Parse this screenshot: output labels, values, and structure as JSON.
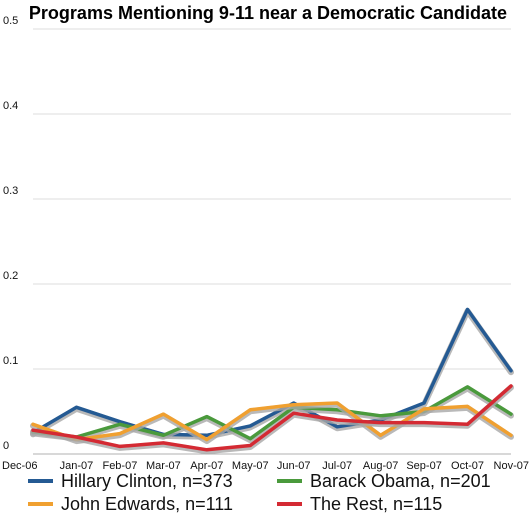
{
  "chart_data": {
    "type": "line",
    "title": "Programs Mentioning 9-11 near a Democratic Candidate",
    "xlabel": "",
    "ylabel": "",
    "categories": [
      "Dec-06",
      "Jan-07",
      "Feb-07",
      "Mar-07",
      "Apr-07",
      "May-07",
      "Jun-07",
      "Jul-07",
      "Aug-07",
      "Sep-07",
      "Oct-07",
      "Nov-07"
    ],
    "y_ticks": [
      "0",
      "0.1",
      "0.2",
      "0.3",
      "0.4",
      "0.5"
    ],
    "ylim": [
      0,
      0.5
    ],
    "grid": true,
    "legend_placement": "bottom",
    "series": [
      {
        "name": "Hillary Clinton, n=373",
        "color": "#245a93",
        "values": [
          0.025,
          0.055,
          0.038,
          0.023,
          0.022,
          0.033,
          0.06,
          0.032,
          0.04,
          0.06,
          0.17,
          0.098
        ]
      },
      {
        "name": "Barack Obama, n=201",
        "color": "#4a9a3c",
        "values": [
          0.026,
          0.02,
          0.035,
          0.022,
          0.044,
          0.018,
          0.055,
          0.052,
          0.045,
          0.05,
          0.079,
          0.047
        ]
      },
      {
        "name": "John Edwards, n=111",
        "color": "#f0a030",
        "values": [
          0.035,
          0.017,
          0.024,
          0.047,
          0.017,
          0.052,
          0.058,
          0.06,
          0.022,
          0.053,
          0.056,
          0.022
        ]
      },
      {
        "name": "The Rest, n=115",
        "color": "#d42a33",
        "values": [
          0.028,
          0.02,
          0.009,
          0.013,
          0.005,
          0.01,
          0.048,
          0.04,
          0.037,
          0.037,
          0.035,
          0.08
        ]
      }
    ]
  }
}
